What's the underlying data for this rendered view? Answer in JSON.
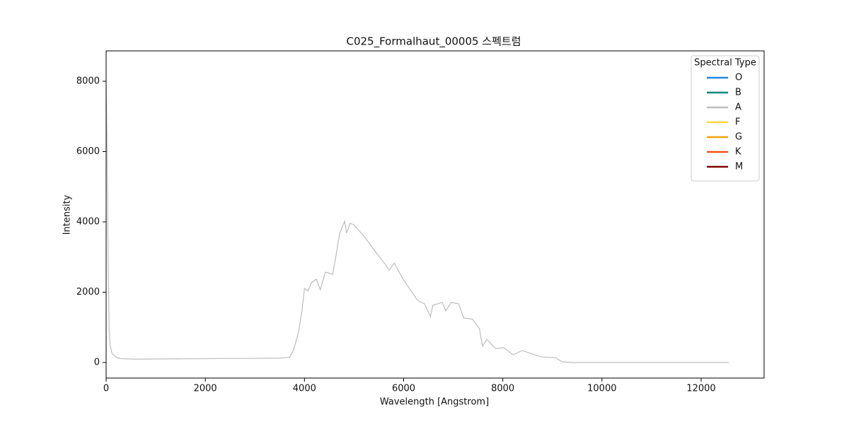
{
  "chart_data": {
    "type": "line",
    "title": "C025_Formalhaut_00005 스펙트럼",
    "xlabel": "Wavelength [Angstrom]",
    "ylabel": "Intensity",
    "x": [
      0,
      20,
      40,
      60,
      80,
      120,
      200,
      300,
      600,
      1000,
      2000,
      3000,
      3500,
      3700,
      3780,
      3880,
      3950,
      4000,
      4070,
      4140,
      4240,
      4320,
      4420,
      4570,
      4640,
      4710,
      4810,
      4850,
      4920,
      4990,
      5210,
      5420,
      5640,
      5710,
      5810,
      5990,
      6280,
      6420,
      6540,
      6590,
      6780,
      6850,
      6960,
      7110,
      7210,
      7390,
      7530,
      7590,
      7680,
      7850,
      8020,
      8210,
      8390,
      8560,
      8780,
      9060,
      9200,
      9420,
      12555
    ],
    "series": [
      {
        "color": "#bdbdbd",
        "values": [
          8000,
          6000,
          3000,
          1000,
          500,
          250,
          150,
          110,
          95,
          100,
          110,
          120,
          125,
          150,
          360,
          860,
          1470,
          2110,
          2030,
          2270,
          2370,
          2070,
          2570,
          2510,
          3075,
          3680,
          4020,
          3680,
          3960,
          3920,
          3580,
          3175,
          2770,
          2630,
          2830,
          2370,
          1770,
          1670,
          1310,
          1630,
          1710,
          1470,
          1710,
          1670,
          1270,
          1230,
          960,
          460,
          660,
          400,
          420,
          220,
          340,
          260,
          160,
          140,
          20,
          0,
          0
        ]
      }
    ],
    "xlim": [
      0,
      13270
    ],
    "ylim": [
      -442,
      8864
    ],
    "xticks": [
      0,
      2000,
      4000,
      6000,
      8000,
      10000,
      12000
    ],
    "yticks": [
      0,
      2000,
      4000,
      6000,
      8000
    ],
    "grid": false,
    "legend": {
      "title": "Spectral Type",
      "loc": "upper right",
      "entries": [
        {
          "name": "O",
          "color": "#1e88e5"
        },
        {
          "name": "B",
          "color": "#00897b"
        },
        {
          "name": "A",
          "color": "#bdbdbd"
        },
        {
          "name": "F",
          "color": "#fdd835"
        },
        {
          "name": "G",
          "color": "#f0a30a"
        },
        {
          "name": "K",
          "color": "#f4511e"
        },
        {
          "name": "M",
          "color": "#7f0000"
        }
      ]
    }
  }
}
